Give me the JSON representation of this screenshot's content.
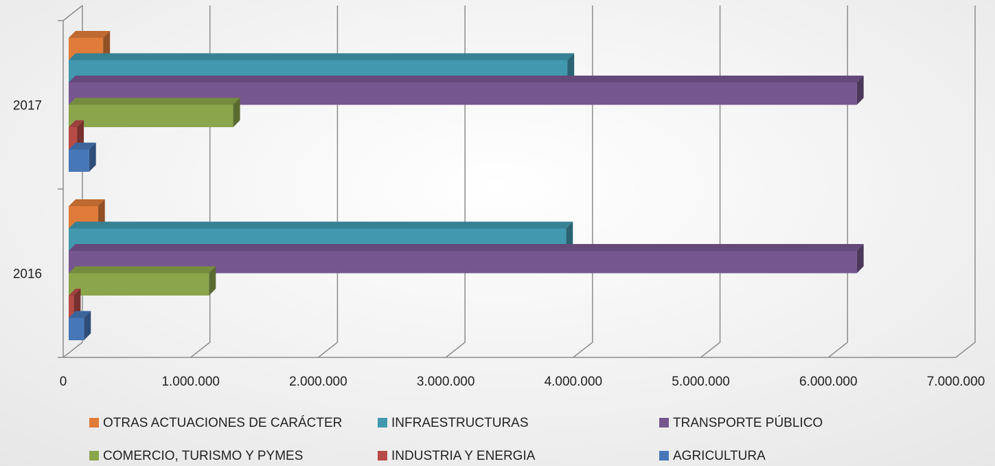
{
  "chart_data": {
    "type": "bar",
    "orientation": "horizontal",
    "categories": [
      "2016",
      "2017"
    ],
    "series": [
      {
        "name": "OTRAS ACTUACIONES DE CARÁCTER",
        "color": "#e07b39",
        "values": [
          230000,
          270000
        ]
      },
      {
        "name": "INFRAESTRUCTURAS",
        "color": "#4198af",
        "values": [
          3900000,
          3910000
        ]
      },
      {
        "name": "TRANSPORTE PÚBLICO",
        "color": "#76568f",
        "values": [
          6180000,
          6180000
        ]
      },
      {
        "name": "COMERCIO, TURISMO Y PYMES",
        "color": "#8aa54a",
        "values": [
          1100000,
          1290000
        ]
      },
      {
        "name": "INDUSTRIA Y ENERGIA",
        "color": "#b84b47",
        "values": [
          40000,
          65000
        ]
      },
      {
        "name": "AGRICULTURA",
        "color": "#4677b8",
        "values": [
          120000,
          160000
        ]
      }
    ],
    "xlim": [
      0,
      7000000
    ],
    "xticks": [
      0,
      {
        "value": 1000000,
        "label": "1.000.000"
      },
      {
        "value": 2000000,
        "label": "2.000.000"
      },
      {
        "value": 3000000,
        "label": "3.000.000"
      },
      {
        "value": 4000000,
        "label": "4.000.000"
      },
      {
        "value": 5000000,
        "label": "5.000.000"
      },
      {
        "value": 6000000,
        "label": "6.000.000"
      },
      {
        "value": 7000000,
        "label": "7.000.000"
      }
    ],
    "grid": true,
    "legend": "bottom"
  }
}
